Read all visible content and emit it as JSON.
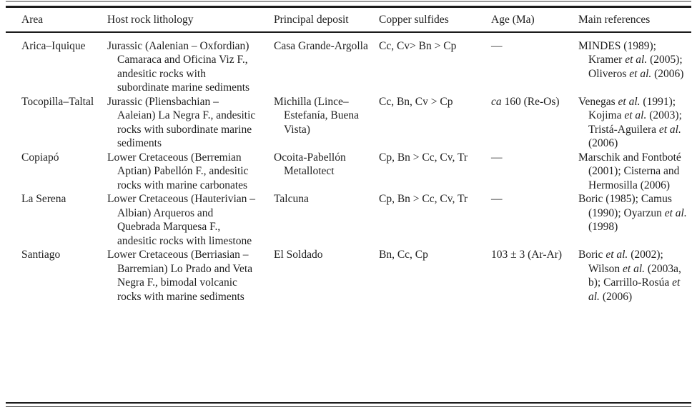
{
  "colors": {
    "background": "#ffffff",
    "text": "#1f1f1f",
    "rule": "#1c1c1c",
    "caption_remnant": "#999999"
  },
  "table": {
    "columns": [
      {
        "key": "area",
        "label": "Area"
      },
      {
        "key": "lithology",
        "label": "Host rock lithology"
      },
      {
        "key": "deposit",
        "label": "Principal deposit"
      },
      {
        "key": "sulfides",
        "label": "Copper sulfides"
      },
      {
        "key": "age",
        "label": "Age (Ma)"
      },
      {
        "key": "references",
        "label": "Main references"
      }
    ],
    "rows": [
      {
        "area": "Arica–Iquique",
        "lithology": "Jurassic (Aalenian – Oxfordian) Camaraca and Oficina Viz F., andesitic rocks with subordinate marine sediments",
        "deposit": "Casa Grande-Argolla",
        "sulfides": "Cc, Cv> Bn > Cp",
        "age": "—",
        "references": "MINDES (1989); Kramer *et al.* (2005); Oliveros *et al.* (2006)"
      },
      {
        "area": "Tocopilla–Taltal",
        "lithology": "Jurassic (Pliensbachian – Aaleian) La Negra F., andesitic rocks with subordinate marine sediments",
        "deposit": "Michilla (Lince–Estefanía, Buena Vista)",
        "sulfides": "Cc, Bn, Cv > Cp",
        "age": "*ca* 160 (Re-Os)",
        "references": "Venegas *et al.* (1991); Kojima *et al.* (2003); Tristá-Aguilera *et al.* (2006)"
      },
      {
        "area": "Copiapó",
        "lithology": "Lower Cretaceous (Berremian Aptian) Pabellón F., andesitic rocks with marine carbonates",
        "deposit": "Ocoita-Pabellón Metallotect",
        "sulfides": "Cp, Bn > Cc, Cv, Tr",
        "age": "—",
        "references": "Marschik and Fontboté (2001); Cisterna and Hermosilla (2006)"
      },
      {
        "area": "La Serena",
        "lithology": "Lower Cretaceous (Hauterivian – Albian) Arqueros and Quebrada Marquesa F., andesitic rocks with limestone",
        "deposit": "Talcuna",
        "sulfides": "Cp, Bn > Cc, Cv, Tr",
        "age": "—",
        "references": "Boric (1985); Camus (1990); Oyarzun *et al.* (1998)"
      },
      {
        "area": "Santiago",
        "lithology": "Lower Cretaceous (Berriasian – Barremian) Lo Prado and Veta Negra F., bimodal volcanic rocks with marine sediments",
        "deposit": "El Soldado",
        "sulfides": "Bn, Cc, Cp",
        "age": "103 ± 3 (Ar-Ar)",
        "references": "Boric *et al.* (2002); Wilson *et al.* (2003a, b); Carrillo-Rosúa *et al.* (2006)"
      }
    ]
  }
}
